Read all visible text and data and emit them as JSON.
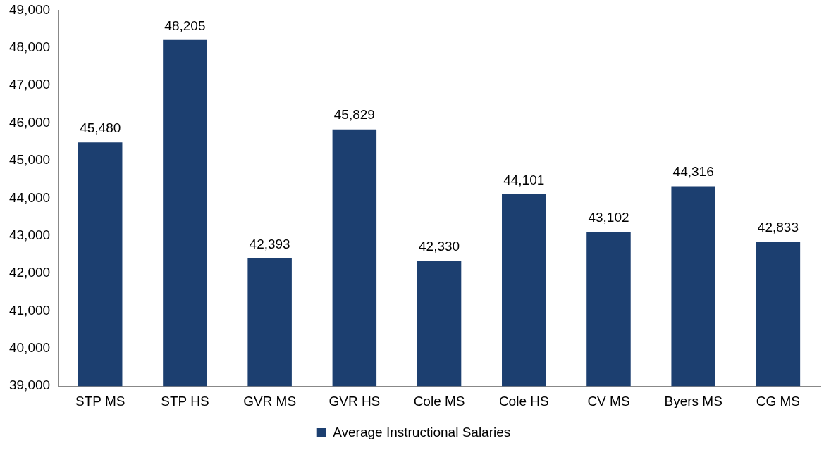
{
  "chart_data": {
    "type": "bar",
    "categories": [
      "STP MS",
      "STP HS",
      "GVR MS",
      "GVR HS",
      "Cole MS",
      "Cole HS",
      "CV MS",
      "Byers MS",
      "CG MS"
    ],
    "series": [
      {
        "name": "Average Instructional Salaries",
        "color": "#1c3f70",
        "values": [
          45480,
          48205,
          42393,
          45829,
          42330,
          44101,
          43102,
          44316,
          42833
        ],
        "value_labels": [
          "45,480",
          "48,205",
          "42,393",
          "45,829",
          "42,330",
          "44,101",
          "43,102",
          "44,316",
          "42,833"
        ]
      }
    ],
    "ylim": [
      39000,
      49000
    ],
    "yticks": [
      {
        "value": 39000,
        "label": "39,000"
      },
      {
        "value": 40000,
        "label": "40,000"
      },
      {
        "value": 41000,
        "label": "41,000"
      },
      {
        "value": 42000,
        "label": "42,000"
      },
      {
        "value": 43000,
        "label": "43,000"
      },
      {
        "value": 44000,
        "label": "44,000"
      },
      {
        "value": 45000,
        "label": "45,000"
      },
      {
        "value": 46000,
        "label": "46,000"
      },
      {
        "value": 47000,
        "label": "47,000"
      },
      {
        "value": 48000,
        "label": "48,000"
      },
      {
        "value": 49000,
        "label": "49,000"
      }
    ],
    "grid": false,
    "legend": "bottom"
  }
}
